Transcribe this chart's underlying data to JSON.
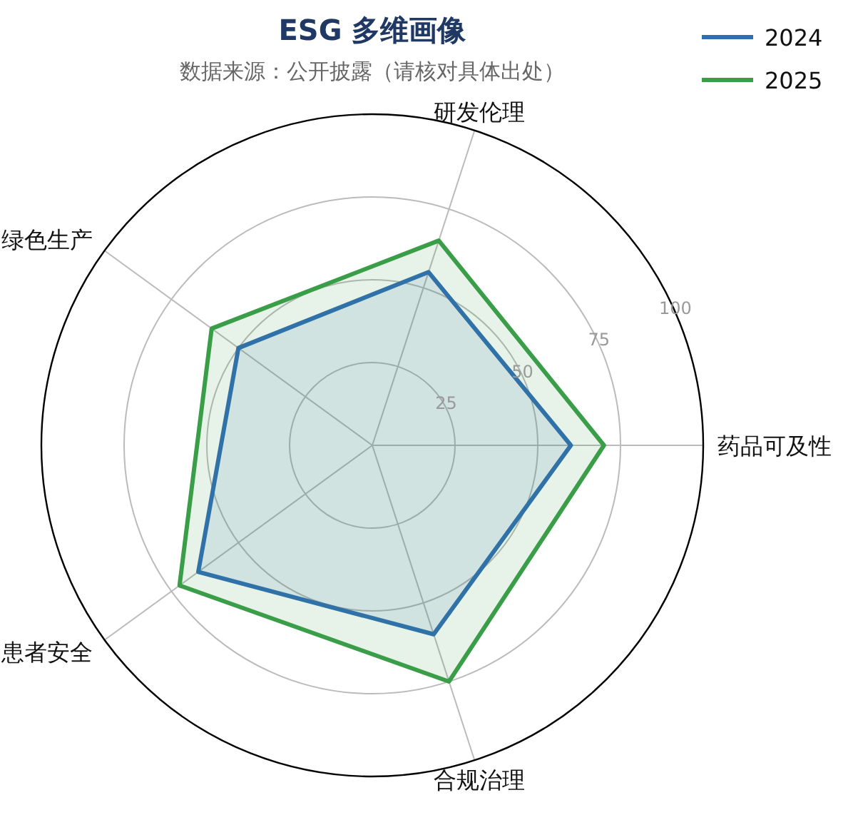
{
  "chart_data": {
    "type": "radar",
    "title": "ESG 多维画像",
    "subtitle": "数据来源：公开披露（请核对具体出处）",
    "categories": [
      "研发伦理",
      "药品可及性",
      "合规治理",
      "患者安全",
      "绿色生产"
    ],
    "series": [
      {
        "name": "2024",
        "color": "#2f6db5",
        "values": [
          55,
          60,
          60,
          65,
          50
        ]
      },
      {
        "name": "2025",
        "color": "#3a9e48",
        "values": [
          65,
          70,
          75,
          72,
          60
        ]
      }
    ],
    "ylim": [
      0,
      100
    ],
    "yticks": [
      25,
      50,
      75,
      100
    ],
    "grid": true,
    "legend": "top right"
  }
}
